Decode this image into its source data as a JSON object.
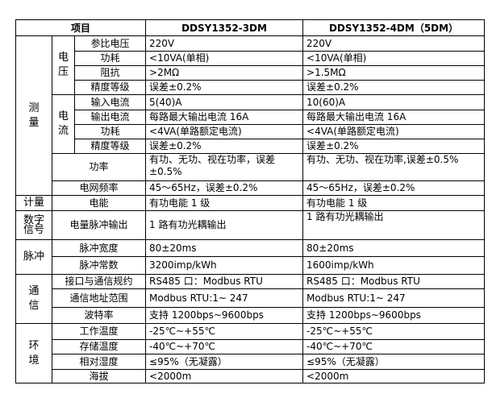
{
  "header": {
    "item": "项目",
    "model_a": "DDSY1352-3DM",
    "model_b": "DDSY1352-4DM（5DM）"
  },
  "groups": {
    "measure": "测量",
    "voltage": "电压",
    "current": "电流",
    "metering": "计量",
    "digital_signal": "数字信号",
    "pulse": "脉冲",
    "communication": "通信",
    "environment": "环境"
  },
  "rows": [
    {
      "name": "参比电压",
      "a": "220V",
      "b": "220V"
    },
    {
      "name": "功耗",
      "a": "<10VA(单相)",
      "b": "<10VA(单相)"
    },
    {
      "name": "阻抗",
      "a": ">2MΩ",
      "b": ">1.5MΩ"
    },
    {
      "name": "精度等级",
      "a": "误差±0.2%",
      "b": "误差±0.2%"
    },
    {
      "name": "输入电流",
      "a": "5(40)A",
      "b": "10(60)A"
    },
    {
      "name": "输出电流",
      "a": "每路最大输出电流 16A",
      "b": "每路最大输出电流 16A"
    },
    {
      "name": "功耗",
      "a": "<4VA(单路额定电流)",
      "b": "<4VA(单路额定电流)"
    },
    {
      "name": "精度等级",
      "a": "误差±0.2%",
      "b": "误差±0.2%"
    },
    {
      "name": "功率",
      "a": "有功、无功、视在功率，误差±0.5%",
      "b": "有功、无功、视在功率,误差±0.5%"
    },
    {
      "name": "电网频率",
      "a": "45～65Hz，误差±0.2%",
      "b": "45～65Hz，误差±0.2%"
    },
    {
      "name": "电能",
      "a": "有功电能 1 级",
      "b": "有功电能 1 级"
    },
    {
      "name": "电量脉冲输出",
      "a": "1 路有功光耦输出",
      "b": "1 路有功光耦输出"
    },
    {
      "name": "脉冲宽度",
      "a": "80±20ms",
      "b": "80±20ms"
    },
    {
      "name": "脉冲常数",
      "a": "3200imp/kWh",
      "b": "1600imp/kWh"
    },
    {
      "name": "接口与通信规约",
      "a": "RS485 口：Modbus RTU",
      "b": "RS485 口：Modbus RTU"
    },
    {
      "name": "通信地址范围",
      "a": "Modbus RTU:1~ 247",
      "b": "Modbus RTU:1~ 247"
    },
    {
      "name": "波特率",
      "a": "支持 1200bps~9600bps",
      "b": "支持 1200bps~9600bps"
    },
    {
      "name": "工作温度",
      "a": "-25℃~+55℃",
      "b": "-25℃~+55℃"
    },
    {
      "name": "存储温度",
      "a": "-40℃~+70℃",
      "b": "-40℃~+70℃"
    },
    {
      "name": "相对湿度",
      "a": "≤95%（无凝露）",
      "b": "≤95%（无凝露）"
    },
    {
      "name": "海拔",
      "a": "<2000m",
      "b": "<2000m"
    }
  ]
}
